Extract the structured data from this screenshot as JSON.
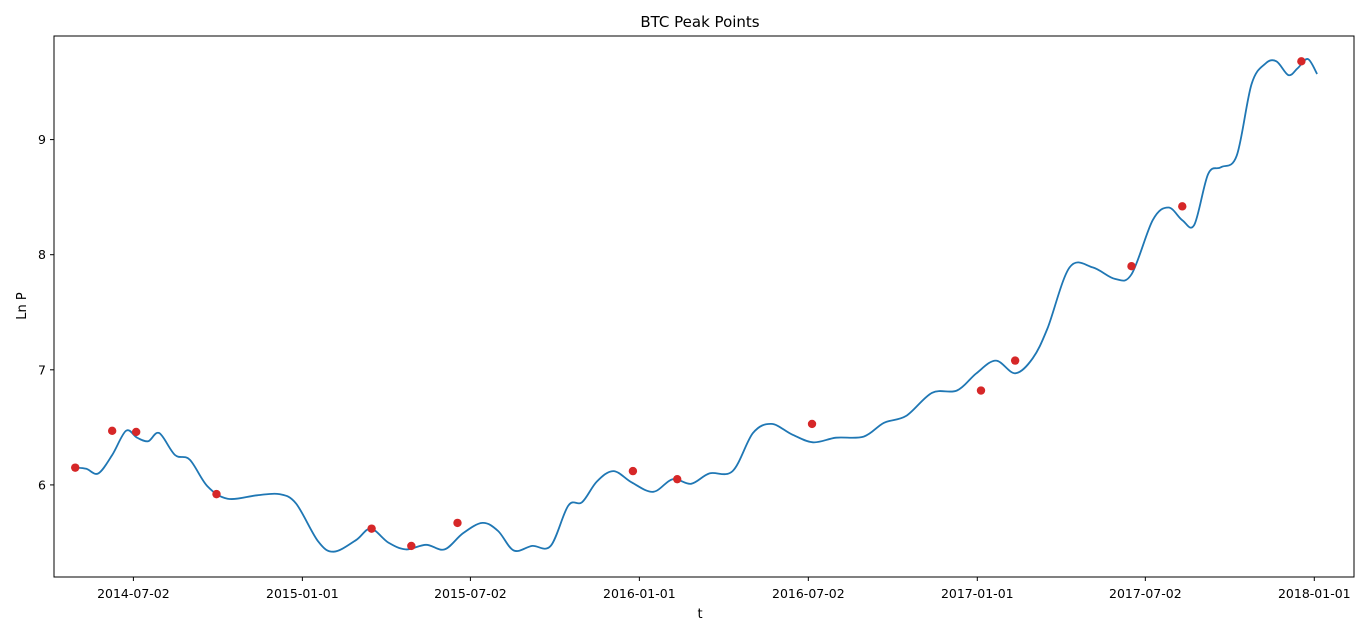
{
  "chart_data": {
    "type": "line",
    "title": "BTC Peak Points",
    "xlabel": "t",
    "ylabel": "Ln P",
    "xlim": [
      "2014-04-07",
      "2018-02-13"
    ],
    "ylim": [
      5.2,
      9.9
    ],
    "x_ticks": [
      "2014-07-02",
      "2015-01-01",
      "2015-07-02",
      "2016-01-01",
      "2016-07-02",
      "2017-01-01",
      "2017-07-02",
      "2018-01-01"
    ],
    "y_ticks": [
      "6",
      "7",
      "8",
      "9"
    ],
    "grid": false,
    "colors": {
      "line": "#1f77b4",
      "peaks": "#d62728"
    },
    "series": [
      {
        "x": [
          "2014-04-30",
          "2014-05-12",
          "2014-05-25",
          "2014-06-09",
          "2014-06-24",
          "2014-07-06",
          "2014-07-18",
          "2014-07-30",
          "2014-08-16",
          "2014-09-01",
          "2014-09-20",
          "2014-10-12",
          "2014-11-13",
          "2014-12-07",
          "2014-12-25",
          "2015-01-18",
          "2015-02-04",
          "2015-02-28",
          "2015-03-16",
          "2015-04-04",
          "2015-04-23",
          "2015-05-15",
          "2015-06-04",
          "2015-06-24",
          "2015-07-15",
          "2015-08-01",
          "2015-08-18",
          "2015-09-07",
          "2015-09-27",
          "2015-10-16",
          "2015-10-31",
          "2015-11-16",
          "2015-12-04",
          "2015-12-24",
          "2016-01-16",
          "2016-02-06",
          "2016-02-26",
          "2016-03-17",
          "2016-04-11",
          "2016-05-03",
          "2016-05-23",
          "2016-06-14",
          "2016-07-07",
          "2016-08-01",
          "2016-08-31",
          "2016-09-22",
          "2016-10-16",
          "2016-11-13",
          "2016-12-10",
          "2016-12-31",
          "2017-01-21",
          "2017-02-11",
          "2017-03-02",
          "2017-03-18",
          "2017-04-11",
          "2017-05-06",
          "2017-05-30",
          "2017-06-17",
          "2017-07-10",
          "2017-07-27",
          "2017-08-11",
          "2017-08-24",
          "2017-09-08",
          "2017-09-22",
          "2017-10-09",
          "2017-10-25",
          "2017-11-09",
          "2017-11-21",
          "2017-12-04",
          "2017-12-14",
          "2017-12-25",
          "2018-01-04"
        ],
        "y": [
          6.15,
          6.14,
          6.1,
          6.26,
          6.47,
          6.41,
          6.38,
          6.45,
          6.26,
          6.22,
          5.99,
          5.88,
          5.91,
          5.92,
          5.84,
          5.51,
          5.42,
          5.52,
          5.62,
          5.5,
          5.44,
          5.48,
          5.44,
          5.58,
          5.67,
          5.6,
          5.43,
          5.47,
          5.47,
          5.82,
          5.85,
          6.03,
          6.12,
          6.02,
          5.94,
          6.05,
          6.01,
          6.1,
          6.12,
          6.45,
          6.53,
          6.44,
          6.37,
          6.41,
          6.42,
          6.54,
          6.6,
          6.8,
          6.82,
          6.97,
          7.08,
          6.97,
          7.1,
          7.36,
          7.89,
          7.89,
          7.79,
          7.83,
          8.3,
          8.41,
          8.3,
          8.26,
          8.7,
          8.76,
          8.86,
          9.48,
          9.66,
          9.68,
          9.56,
          9.62,
          9.7,
          9.57
        ]
      },
      {
        "name": "peaks",
        "x": [
          "2014-04-30",
          "2014-06-09",
          "2014-07-05",
          "2014-09-30",
          "2015-03-17",
          "2015-04-29",
          "2015-06-18",
          "2015-12-25",
          "2016-02-11",
          "2016-07-06",
          "2017-01-05",
          "2017-02-11",
          "2017-06-17",
          "2017-08-11",
          "2017-12-18"
        ],
        "y": [
          6.15,
          6.47,
          6.46,
          5.92,
          5.62,
          5.47,
          5.67,
          6.12,
          6.05,
          6.53,
          6.82,
          7.08,
          7.9,
          8.42,
          9.68
        ]
      }
    ]
  }
}
